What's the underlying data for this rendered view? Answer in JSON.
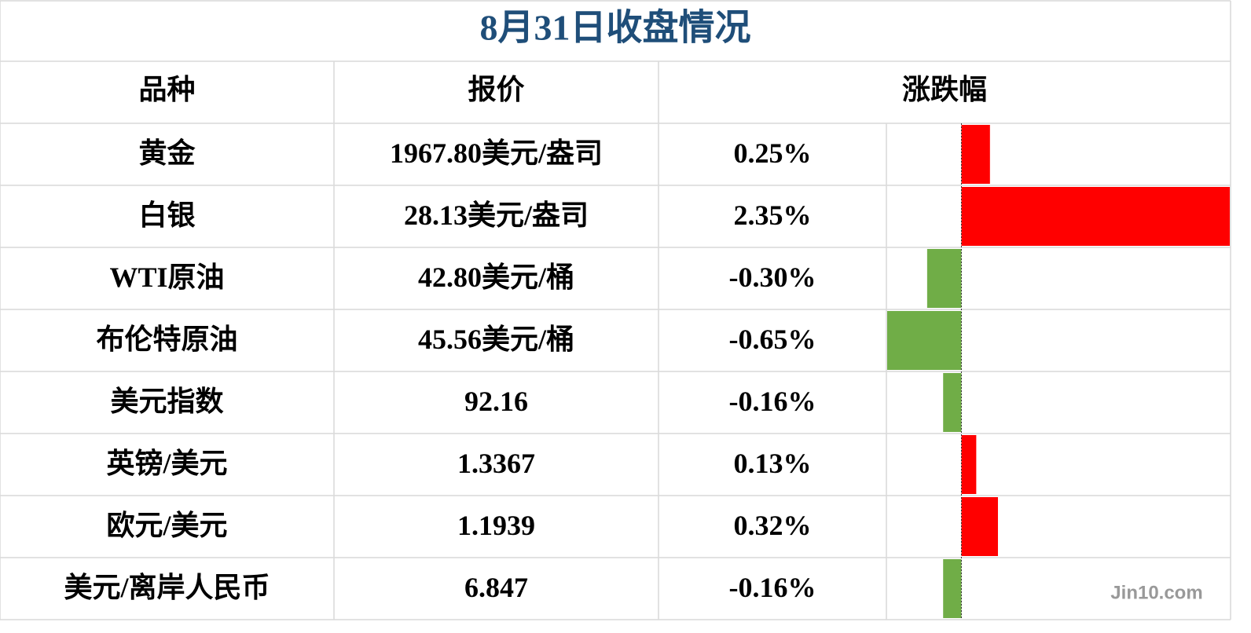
{
  "title": "8月31日收盘情况",
  "table": {
    "headers": [
      "品种",
      "报价",
      "涨跌幅"
    ],
    "rows": [
      [
        "黄金",
        "1967.80美元/盎司"
      ],
      [
        "白银",
        "28.13美元/盎司"
      ],
      [
        "WTI原油",
        "42.80美元/桶"
      ],
      [
        "布伦特原油",
        "45.56美元/桶"
      ],
      [
        "美元指数",
        "92.16"
      ],
      [
        "英镑/美元",
        "1.3367"
      ],
      [
        "欧元/美元",
        "1.1939"
      ],
      [
        "美元/离岸人民币",
        "6.847"
      ]
    ],
    "changes": [
      0.25,
      2.35,
      -0.3,
      -0.65,
      -0.16,
      0.13,
      0.32,
      -0.16
    ],
    "change_labels": [
      "0.25%",
      "2.35%",
      "-0.30%",
      "-0.65%",
      "-0.16%",
      "0.13%",
      "0.32%",
      "-0.16%"
    ],
    "up_color": "#ff0000",
    "down_color": "#70ad47"
  },
  "watermark": "Jin10.com"
}
